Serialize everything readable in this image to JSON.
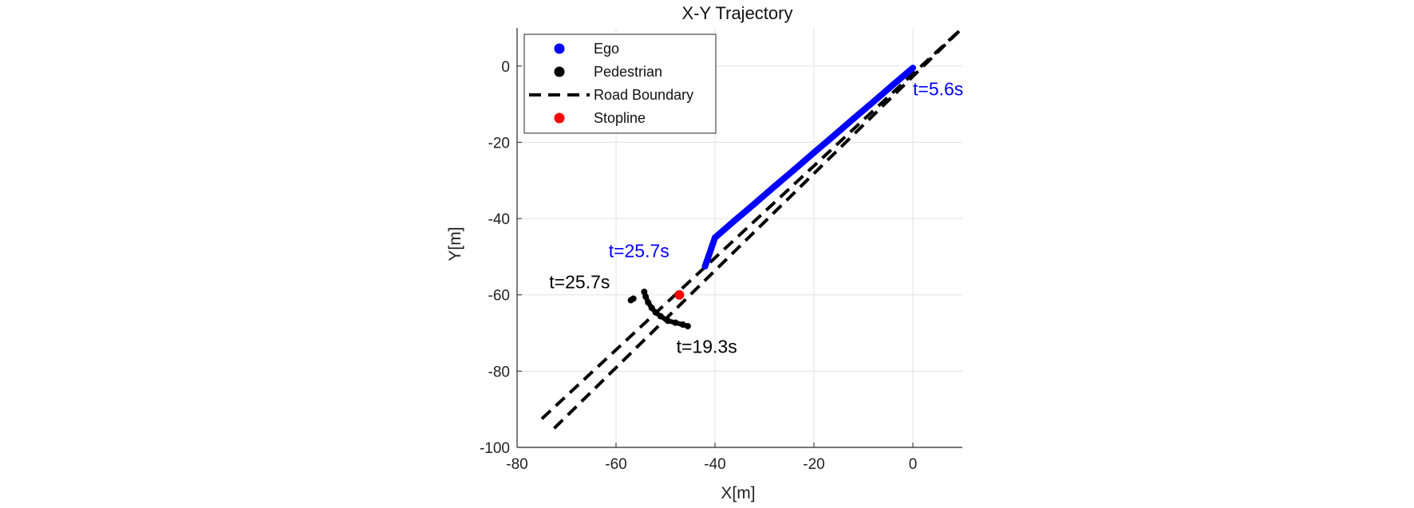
{
  "chart_data": {
    "type": "scatter",
    "title": "X-Y Trajectory",
    "xlabel": "X[m]",
    "ylabel": "Y[m]",
    "xlim": [
      -80,
      10
    ],
    "ylim": [
      -100,
      10
    ],
    "xticks": [
      -80,
      -60,
      -40,
      -20,
      0
    ],
    "yticks": [
      0,
      -20,
      -40,
      -60,
      -80,
      -100
    ],
    "grid": true,
    "legend_position": "top-left",
    "colors": {
      "ego": "#0000ff",
      "pedestrian": "#000000",
      "road_boundary": "#000000",
      "stopline": "#ff0000"
    },
    "legend": [
      {
        "label": "Ego",
        "marker": "dot",
        "color": "#0000ff"
      },
      {
        "label": "Pedestrian",
        "marker": "dot",
        "color": "#000000"
      },
      {
        "label": "Road Boundary",
        "marker": "dash",
        "color": "#000000"
      },
      {
        "label": "Stopline",
        "marker": "dot",
        "color": "#ff0000"
      }
    ],
    "series": [
      {
        "name": "Ego",
        "style": "points",
        "color": "#0000ff",
        "x": [
          0,
          -4,
          -8,
          -12,
          -16,
          -20,
          -24,
          -28,
          -32,
          -36,
          -40,
          -42
        ],
        "y": [
          -0.5,
          -4.9,
          -9.4,
          -13.8,
          -18.3,
          -22.7,
          -27.2,
          -31.6,
          -36.1,
          -40.5,
          -45,
          -52.5
        ]
      },
      {
        "name": "Pedestrian",
        "style": "points",
        "color": "#000000",
        "x": [
          -45.5,
          -46.5,
          -48,
          -49.5,
          -51,
          -52,
          -52.8,
          -53.5,
          -54,
          -54.3,
          -56.5,
          -57
        ],
        "y": [
          -68.2,
          -67.8,
          -67.3,
          -66.8,
          -65.6,
          -64.6,
          -63.4,
          -62,
          -60.5,
          -59.2,
          -61,
          -61.4
        ]
      },
      {
        "name": "Road Boundary",
        "style": "dashed-line",
        "color": "#000000",
        "lines": [
          {
            "x": [
              -75,
              10
            ],
            "y": [
              -92.5,
              10
            ]
          },
          {
            "x": [
              -72.5,
              10
            ],
            "y": [
              -95,
              10
            ]
          }
        ]
      },
      {
        "name": "Stopline",
        "style": "points",
        "color": "#ff0000",
        "x": [
          -47.2
        ],
        "y": [
          -60
        ]
      }
    ],
    "annotations": [
      {
        "text": "t=5.6s",
        "x": 0,
        "y": -6,
        "color": "#0000ff"
      },
      {
        "text": "t=25.7s",
        "x": -61.5,
        "y": -48.4,
        "color": "#0000ff"
      },
      {
        "text": "t=25.7s",
        "x": -73.5,
        "y": -56.6,
        "color": "#000000"
      },
      {
        "text": "t=19.3s",
        "x": -47.8,
        "y": -73.5,
        "color": "#000000"
      }
    ]
  }
}
